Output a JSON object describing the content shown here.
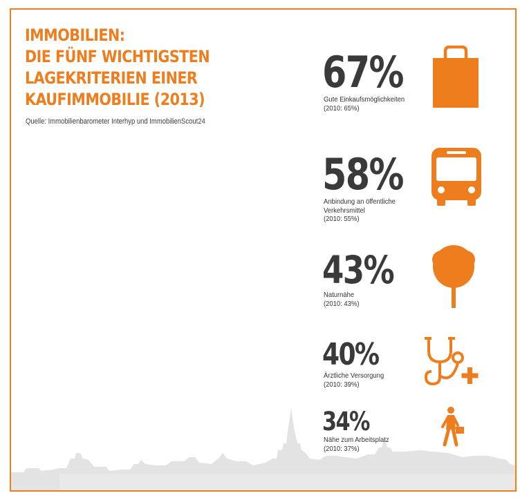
{
  "title_lines": [
    "IMMOBILIEN:",
    "DIE FÜNF WICHTIGSTEN",
    "LAGEKRITERIEN EINER",
    "KAUFIMMOBILIE (2013)"
  ],
  "source": "Quelle: Immobilienbarometer Interhyp und ImmobilienScout24",
  "colors": {
    "accent": "#ee7d1e",
    "text": "#3a3a3a",
    "skyline": "#e3e3e3"
  },
  "chart_data": {
    "type": "table",
    "title": "IMMOBILIEN: DIE FÜNF WICHTIGSTEN LAGEKRITERIEN EINER KAUFIMMOBILIE (2013)",
    "categories": [
      "Gute Einkaufsmöglichkeiten",
      "Anbindung an öffentliche Verkehrsmittel",
      "Naturnähe",
      "Ärztliche Versorgung",
      "Nähe zum Arbeitsplatz"
    ],
    "series": [
      {
        "name": "2013",
        "values": [
          67,
          58,
          43,
          40,
          34
        ]
      },
      {
        "name": "2010",
        "values": [
          65,
          55,
          43,
          39,
          37
        ]
      }
    ],
    "items": [
      {
        "value": "67%",
        "label_lines": [
          "Gute Einkaufsmöglichkeiten",
          "(2010: 65%)"
        ],
        "icon": "shopping-bag-icon"
      },
      {
        "value": "58%",
        "label_lines": [
          "Anbindung an öffentliche",
          "Verkehrsmittel",
          "(2010: 55%)"
        ],
        "icon": "bus-icon"
      },
      {
        "value": "43%",
        "label_lines": [
          "Naturnähe",
          "(2010: 43%)"
        ],
        "icon": "tree-icon"
      },
      {
        "value": "40%",
        "label_lines": [
          "Ärztliche Versorgung",
          "(2010: 39%)"
        ],
        "icon": "stethoscope-icon"
      },
      {
        "value": "34%",
        "label_lines": [
          "Nähe zum Arbeitsplatz",
          "(2010: 37%)"
        ],
        "icon": "commuter-icon"
      }
    ]
  }
}
